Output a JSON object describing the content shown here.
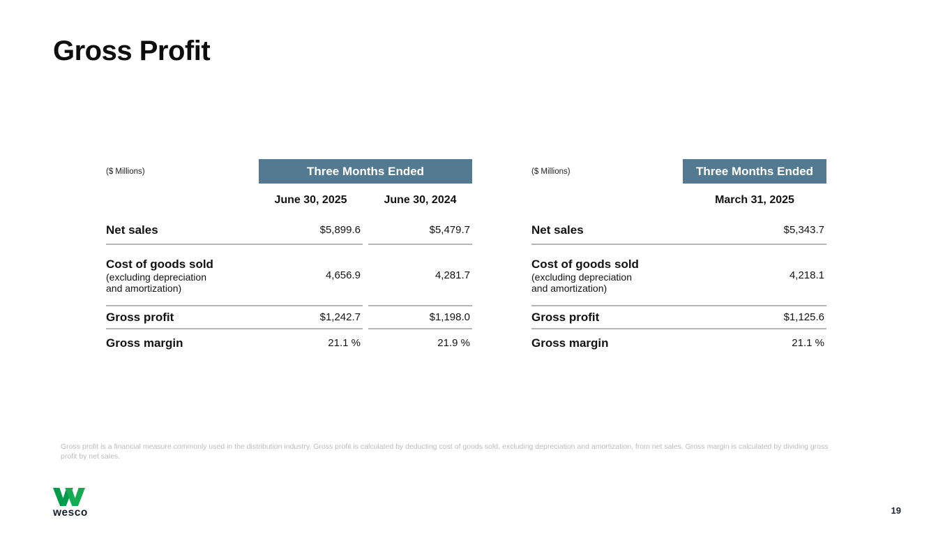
{
  "slide": {
    "title": "Gross Profit",
    "page_number": "19",
    "footnote": "Gross profit is a financial measure commonly used in the distribution industry. Gross profit is calculated by deducting cost of goods sold, excluding depreciation and amortization, from net sales. Gross margin is calculated by dividing gross profit by net sales.",
    "logo_text": "wesco"
  },
  "colors": {
    "banner_bg": "#537a90",
    "banner_text": "#ffffff",
    "rule": "#b5b5b5",
    "footnote": "#bcbcbc",
    "logo_green_dark": "#009b48",
    "logo_green_light": "#14ab52",
    "logo_text": "#17222e",
    "text": "#121212"
  },
  "tables": [
    {
      "units_label": "($ Millions)",
      "banner": "Three Months Ended",
      "columns": [
        "June 30, 2025",
        "June 30, 2024"
      ],
      "rows": [
        {
          "label": "Net sales",
          "sublabel": "",
          "values": [
            "$5,899.6",
            "$5,479.7"
          ]
        },
        {
          "label": "Cost of goods sold",
          "sublabel": "(excluding depreciation and amortization)",
          "values": [
            "4,656.9",
            "4,281.7"
          ]
        },
        {
          "label": "Gross profit",
          "sublabel": "",
          "values": [
            "$1,242.7",
            "$1,198.0"
          ]
        },
        {
          "label": "Gross margin",
          "sublabel": "",
          "values": [
            "21.1 %",
            "21.9 %"
          ]
        }
      ]
    },
    {
      "units_label": "($ Millions)",
      "banner": "Three Months Ended",
      "columns": [
        "March 31, 2025"
      ],
      "rows": [
        {
          "label": "Net sales",
          "sublabel": "",
          "values": [
            "$5,343.7"
          ]
        },
        {
          "label": "Cost of goods sold",
          "sublabel": "(excluding depreciation and amortization)",
          "values": [
            "4,218.1"
          ]
        },
        {
          "label": "Gross profit",
          "sublabel": "",
          "values": [
            "$1,125.6"
          ]
        },
        {
          "label": "Gross margin",
          "sublabel": "",
          "values": [
            "21.1 %"
          ]
        }
      ]
    }
  ]
}
